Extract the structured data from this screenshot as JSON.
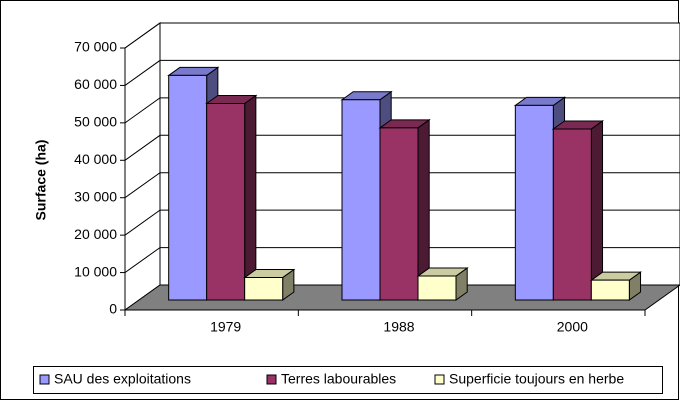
{
  "chart_data": {
    "type": "bar3d",
    "y_label": "Surface (ha)",
    "categories": [
      "1979",
      "1988",
      "2000"
    ],
    "series": [
      {
        "name": "SAU des exploitations",
        "color": "#9999ff",
        "values": [
          60000,
          53500,
          52000
        ]
      },
      {
        "name": "Terres labourables",
        "color": "#993366",
        "values": [
          52500,
          46000,
          45700
        ]
      },
      {
        "name": "Superficie toujours en herbe",
        "color": "#ffffcc",
        "values": [
          6000,
          6400,
          5300
        ]
      }
    ],
    "ylim": [
      0,
      70000
    ],
    "yticks": [
      0,
      {
        "value": 10000,
        "label": "10 000"
      },
      {
        "value": 20000,
        "label": "20 000"
      },
      {
        "value": 30000,
        "label": "30 000"
      },
      {
        "value": 40000,
        "label": "40 000"
      },
      {
        "value": 50000,
        "label": "50 000"
      },
      {
        "value": 60000,
        "label": "60 000"
      },
      {
        "value": 70000,
        "label": "70 000"
      }
    ],
    "grid": true,
    "legend": "bottom"
  }
}
